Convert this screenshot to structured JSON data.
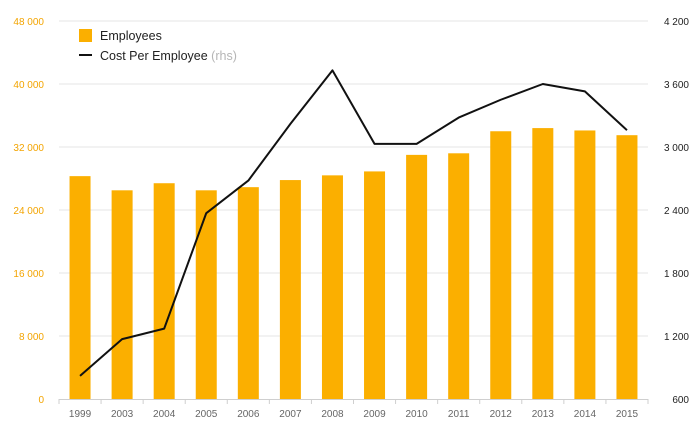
{
  "colors": {
    "bar": "#FBAF00",
    "line": "#111111",
    "left_axis_text": "#F3A400",
    "right_axis_text": "#222222",
    "x_axis_text": "#666666",
    "grid": "#E6E6E6",
    "rhs_hint": "#B5B5B5"
  },
  "chart_data": {
    "type": "bar",
    "categories": [
      "1999",
      "2003",
      "2004",
      "2005",
      "2006",
      "2007",
      "2008",
      "2009",
      "2010",
      "2011",
      "2012",
      "2013",
      "2014",
      "2015"
    ],
    "series": [
      {
        "name": "Employees",
        "type": "bar",
        "axis": "left",
        "values": [
          28300,
          26500,
          27400,
          26500,
          26900,
          27800,
          28400,
          28900,
          31000,
          31200,
          34000,
          34400,
          34100,
          33500
        ]
      },
      {
        "name": "Cost Per Employee",
        "name_suffix": "(rhs)",
        "type": "line",
        "axis": "right",
        "values": [
          820,
          1170,
          1270,
          2370,
          2680,
          3220,
          3730,
          3030,
          3030,
          3280,
          3450,
          3600,
          3530,
          3160
        ]
      }
    ],
    "y_left": {
      "ylim": [
        0,
        48000
      ],
      "ticks": [
        0,
        8000,
        16000,
        24000,
        32000,
        40000,
        48000
      ],
      "tick_labels": [
        "0",
        "8 000",
        "16 000",
        "24 000",
        "32 000",
        "40 000",
        "48 000"
      ]
    },
    "y_right": {
      "ylim": [
        600,
        4200
      ],
      "ticks": [
        600,
        1200,
        1800,
        2400,
        3000,
        3600,
        4200
      ],
      "tick_labels": [
        "600",
        "1 200",
        "1 800",
        "2 400",
        "3 000",
        "3 600",
        "4 200"
      ]
    },
    "grid": true,
    "legend_position": "top-left"
  }
}
